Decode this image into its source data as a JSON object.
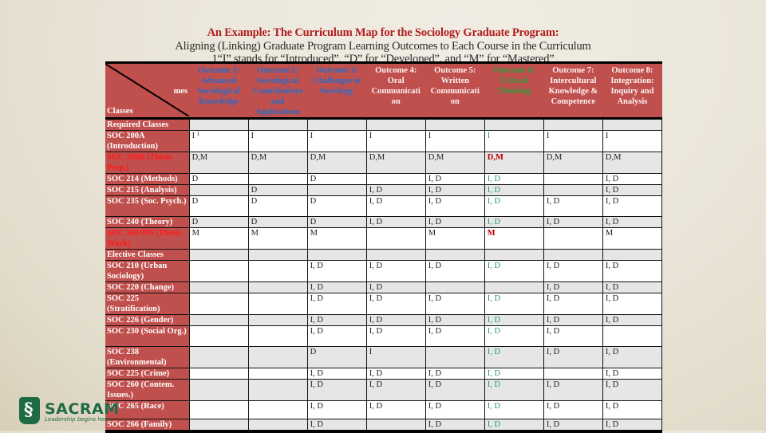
{
  "header": {
    "title": "An Example: The Curriculum Map for the Sociology Graduate Program:",
    "subtitle": "Aligning (Linking) Graduate Program Learning Outcomes to Each Course in the Curriculum",
    "footnote_line": "1“I” stands for “Introduced”, “D” for “Developed”, and “M” for “Mastered”"
  },
  "table": {
    "corner": {
      "top_label": "Outco",
      "right_label": "mes",
      "bottom_label": "Classes"
    },
    "outcomes": [
      {
        "label": "Outcome 1: Advanced Sociological Knowledge",
        "color": "blue"
      },
      {
        "label": "Outcome 2: Sociological Contributions and Applications",
        "color": "blue"
      },
      {
        "label": "Outcome 3: Challenges in Sociology",
        "color": "blue"
      },
      {
        "label": "Outcome 4: Oral Communicati on",
        "color": "white"
      },
      {
        "label": "Outcome 5: Written Communicati on",
        "color": "white"
      },
      {
        "label": "Outcome 6: Critical Thinking",
        "color": "green"
      },
      {
        "label": "Outcome 7: Intercultural Knowledge & Competence",
        "color": "white"
      },
      {
        "label": "Outcome 8: Integration: Inquiry and Analysis",
        "color": "white"
      }
    ],
    "rows": [
      {
        "label": "Required Classes",
        "section": true,
        "cells": [
          "",
          "",
          "",
          "",
          "",
          "",
          "",
          ""
        ]
      },
      {
        "label": "SOC 200A (Introduction)",
        "cells": [
          "I",
          "I",
          "I",
          "I",
          "I",
          "I",
          "I",
          "I"
        ],
        "footnote_first": "1"
      },
      {
        "label": "SOC 200B (Thesis Prep.)",
        "red": true,
        "cells": [
          "D,M",
          "D,M",
          "D,M",
          "D,M",
          "D,M",
          "D,M",
          "D,M",
          "D,M"
        ]
      },
      {
        "label": "SOC 214 (Methods)",
        "cells": [
          "D",
          "",
          "D",
          "",
          "I, D",
          "I, D",
          "",
          "I, D"
        ]
      },
      {
        "label": "SOC 215 (Analysis)",
        "cells": [
          "",
          "D",
          "",
          "I, D",
          "I, D",
          "I, D",
          "",
          "I, D"
        ]
      },
      {
        "label": "SOC 235 (Soc. Psych.)",
        "cells": [
          "D",
          "D",
          "D",
          "I, D",
          "I, D",
          "I, D",
          "I, D",
          "I, D"
        ]
      },
      {
        "label": "SOC 240 (Theory)",
        "cells": [
          "D",
          "D",
          "D",
          "I, D",
          "I, D",
          "I, D",
          "I, D",
          "I, D"
        ]
      },
      {
        "label": "SOC 500/599 (Thesis Work)",
        "red": true,
        "cells": [
          "M",
          "M",
          "M",
          "",
          "M",
          "M",
          "",
          "M"
        ]
      },
      {
        "label": "Elective Classes",
        "section": true,
        "cells": [
          "",
          "",
          "",
          "",
          "",
          "",
          "",
          ""
        ]
      },
      {
        "label": "SOC 210 (Urban Sociology)",
        "cells": [
          "",
          "",
          "I, D",
          "I, D",
          "I, D",
          "I, D",
          "I, D",
          "I, D"
        ]
      },
      {
        "label": "SOC 220 (Change)",
        "cells": [
          "",
          "",
          "I, D",
          "I, D",
          "",
          "",
          "I, D",
          "I, D"
        ]
      },
      {
        "label": "SOC 225 (Stratification)",
        "cells": [
          "",
          "",
          "I, D",
          "I, D",
          "I, D",
          "I, D",
          "I, D",
          "I, D"
        ]
      },
      {
        "label": "SOC 226 (Gender)",
        "cells": [
          "",
          "",
          "I, D",
          "I, D",
          "I, D",
          "I, D",
          "I, D",
          "I, D"
        ]
      },
      {
        "label": "SOC 230 (Social Org.)",
        "cells": [
          "",
          "",
          "I, D",
          "I, D",
          "I, D",
          "I, D",
          "I, D",
          ""
        ]
      },
      {
        "label": "SOC 238 (Environmental)",
        "cells": [
          "",
          "",
          " D",
          "I",
          "",
          "I, D",
          "I, D",
          "I, D"
        ]
      },
      {
        "label": "SOC 225 (Crime)",
        "cells": [
          "",
          "",
          "I, D",
          "I, D",
          "I, D",
          "I, D",
          "",
          "I, D"
        ]
      },
      {
        "label": "SOC 260 (Contem. Issues.)",
        "cells": [
          "",
          "",
          "I, D",
          "I, D",
          "I, D",
          "I, D",
          "I, D",
          "I, D"
        ]
      },
      {
        "label": "SOC 265  (Race)",
        "cells": [
          "",
          "",
          "I, D",
          "I, D",
          "I, D",
          "I, D",
          "I, D",
          "I, D"
        ]
      },
      {
        "label": "SOC 266 (Family)",
        "cells": [
          "",
          "",
          "I, D",
          "",
          "I, D",
          "I, D",
          "I, D",
          "I, D"
        ]
      }
    ]
  },
  "logo": {
    "name": "SACRAMENTO",
    "visible_name": "SACRAM",
    "tagline": "Leadership begins here.",
    "brand_color": "#1f6b45"
  },
  "colors": {
    "header_fill": "#c0504d",
    "title_red": "#b01e1e",
    "outcome6_green": "#2e9a5c",
    "shade_row": "#e6e6e6"
  }
}
